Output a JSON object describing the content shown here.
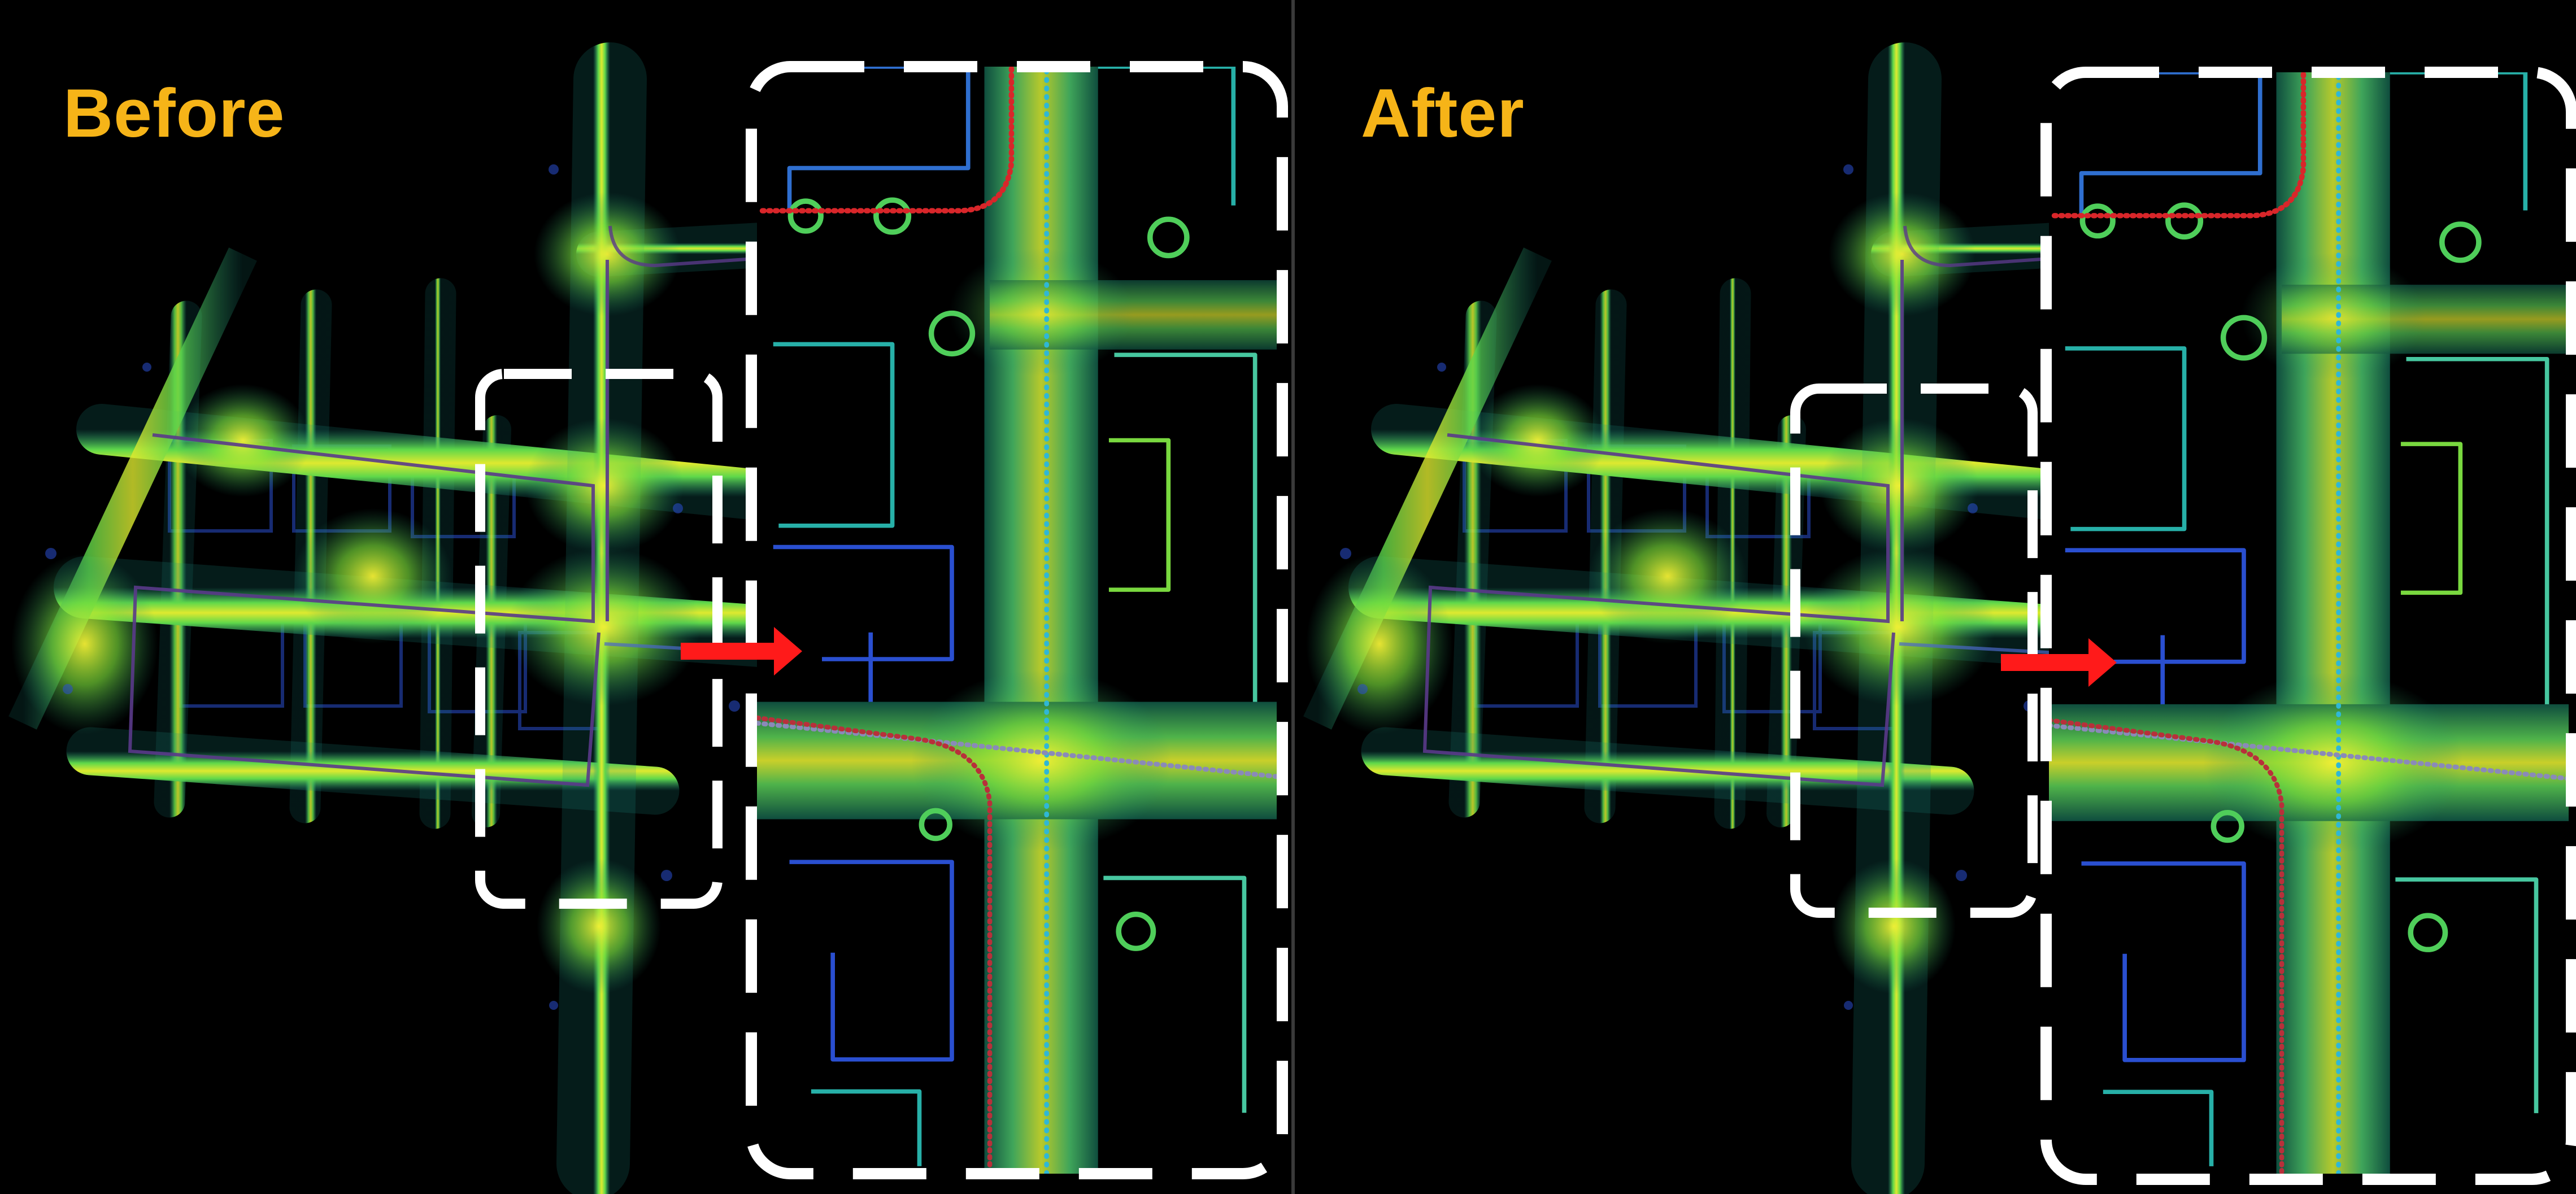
{
  "panels": [
    {
      "id": "before",
      "label": "Before",
      "zoom_has_red_route_on_top_left": true
    },
    {
      "id": "after",
      "label": "After",
      "zoom_has_red_route_on_top_left": true
    }
  ],
  "colors": {
    "background": "#000000",
    "title": "#f6b418",
    "point_cloud_bright": "#e6ef2a",
    "point_cloud_mid": "#55d84a",
    "point_cloud_low": "#1fa39a",
    "point_cloud_sparse": "#2a4fd0",
    "trajectory_red": "#d8262a",
    "trajectory_cyan": "#2fb7d6",
    "arrow": "#ff1a1a",
    "dashed_box": "#ffffff",
    "divider": "#3a3a3a"
  },
  "icons": [
    "right-arrow-icon"
  ]
}
